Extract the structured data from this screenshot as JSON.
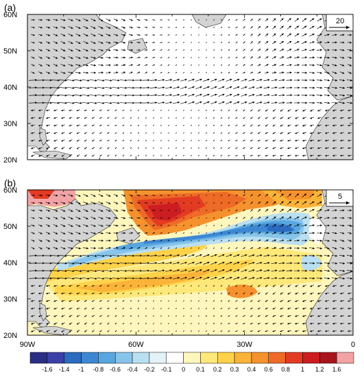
{
  "panels": [
    {
      "label": "(a)",
      "ref_vector": "20"
    },
    {
      "label": "(b)",
      "ref_vector": "5"
    }
  ],
  "lat_labels": [
    "60N",
    "50N",
    "40N",
    "30N",
    "20N"
  ],
  "lon_labels": [
    "90W",
    "60W",
    "30W",
    "0"
  ],
  "colorbar": {
    "labels": [
      "-1.6",
      "-1.4",
      "-1",
      "-0.8",
      "-0.6",
      "-0.4",
      "-0.2",
      "-0.1",
      "0",
      "0.1",
      "0.2",
      "0.3",
      "0.4",
      "0.6",
      "0.8",
      "1",
      "1.2",
      "1.6"
    ],
    "colors": [
      "#2a2e85",
      "#3b3fa8",
      "#2b6bc0",
      "#3d87d2",
      "#58a6df",
      "#87c4ea",
      "#b9dff1",
      "#e4f2f8",
      "#ffffff",
      "#fff6bd",
      "#ffe87a",
      "#ffd24a",
      "#fbb33a",
      "#f5922e",
      "#ee6a27",
      "#e33b22",
      "#cc1e22",
      "#a8141d",
      "#f2a3a5"
    ]
  }
}
